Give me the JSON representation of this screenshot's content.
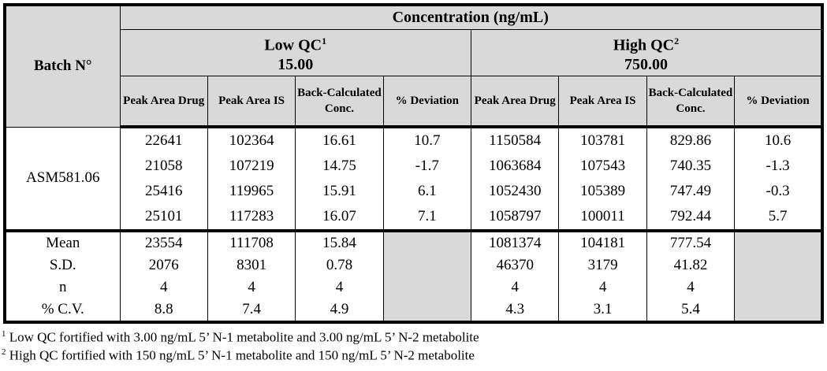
{
  "header": {
    "batch_label": "Batch N°",
    "concentration_label": "Concentration (ng/mL)",
    "low_qc": {
      "label": "Low QC",
      "sup": "1",
      "value": "15.00"
    },
    "high_qc": {
      "label": "High QC",
      "sup": "2",
      "value": "750.00"
    },
    "columns": [
      "Peak Area Drug",
      "Peak Area IS",
      "Back-Calculated Conc.",
      "% Deviation"
    ]
  },
  "batch": "ASM581.06",
  "rows": [
    [
      "22641",
      "102364",
      "16.61",
      "10.7",
      "1150584",
      "103781",
      "829.86",
      "10.6"
    ],
    [
      "21058",
      "107219",
      "14.75",
      "-1.7",
      "1063684",
      "107543",
      "740.35",
      "-1.3"
    ],
    [
      "25416",
      "119965",
      "15.91",
      "6.1",
      "1052430",
      "105389",
      "747.49",
      "-0.3"
    ],
    [
      "25101",
      "117283",
      "16.07",
      "7.1",
      "1058797",
      "100011",
      "792.44",
      "5.7"
    ]
  ],
  "stats": [
    {
      "label": "Mean",
      "low": [
        "23554",
        "111708",
        "15.84"
      ],
      "high": [
        "1081374",
        "104181",
        "777.54"
      ]
    },
    {
      "label": "S.D.",
      "low": [
        "2076",
        "8301",
        "0.78"
      ],
      "high": [
        "46370",
        "3179",
        "41.82"
      ]
    },
    {
      "label": "n",
      "low": [
        "4",
        "4",
        "4"
      ],
      "high": [
        "4",
        "4",
        "4"
      ]
    },
    {
      "label": "% C.V.",
      "low": [
        "8.8",
        "7.4",
        "4.9"
      ],
      "high": [
        "4.3",
        "3.1",
        "5.4"
      ]
    }
  ],
  "footnotes": [
    {
      "mark": "1",
      "text": " Low QC fortified with 3.00 ng/mL 5’ N-1 metabolite and 3.00 ng/mL 5’ N-2 metabolite"
    },
    {
      "mark": "2",
      "text": " High QC fortified with 150 ng/mL 5’ N-1 metabolite and 150 ng/mL 5’ N-2 metabolite"
    }
  ]
}
